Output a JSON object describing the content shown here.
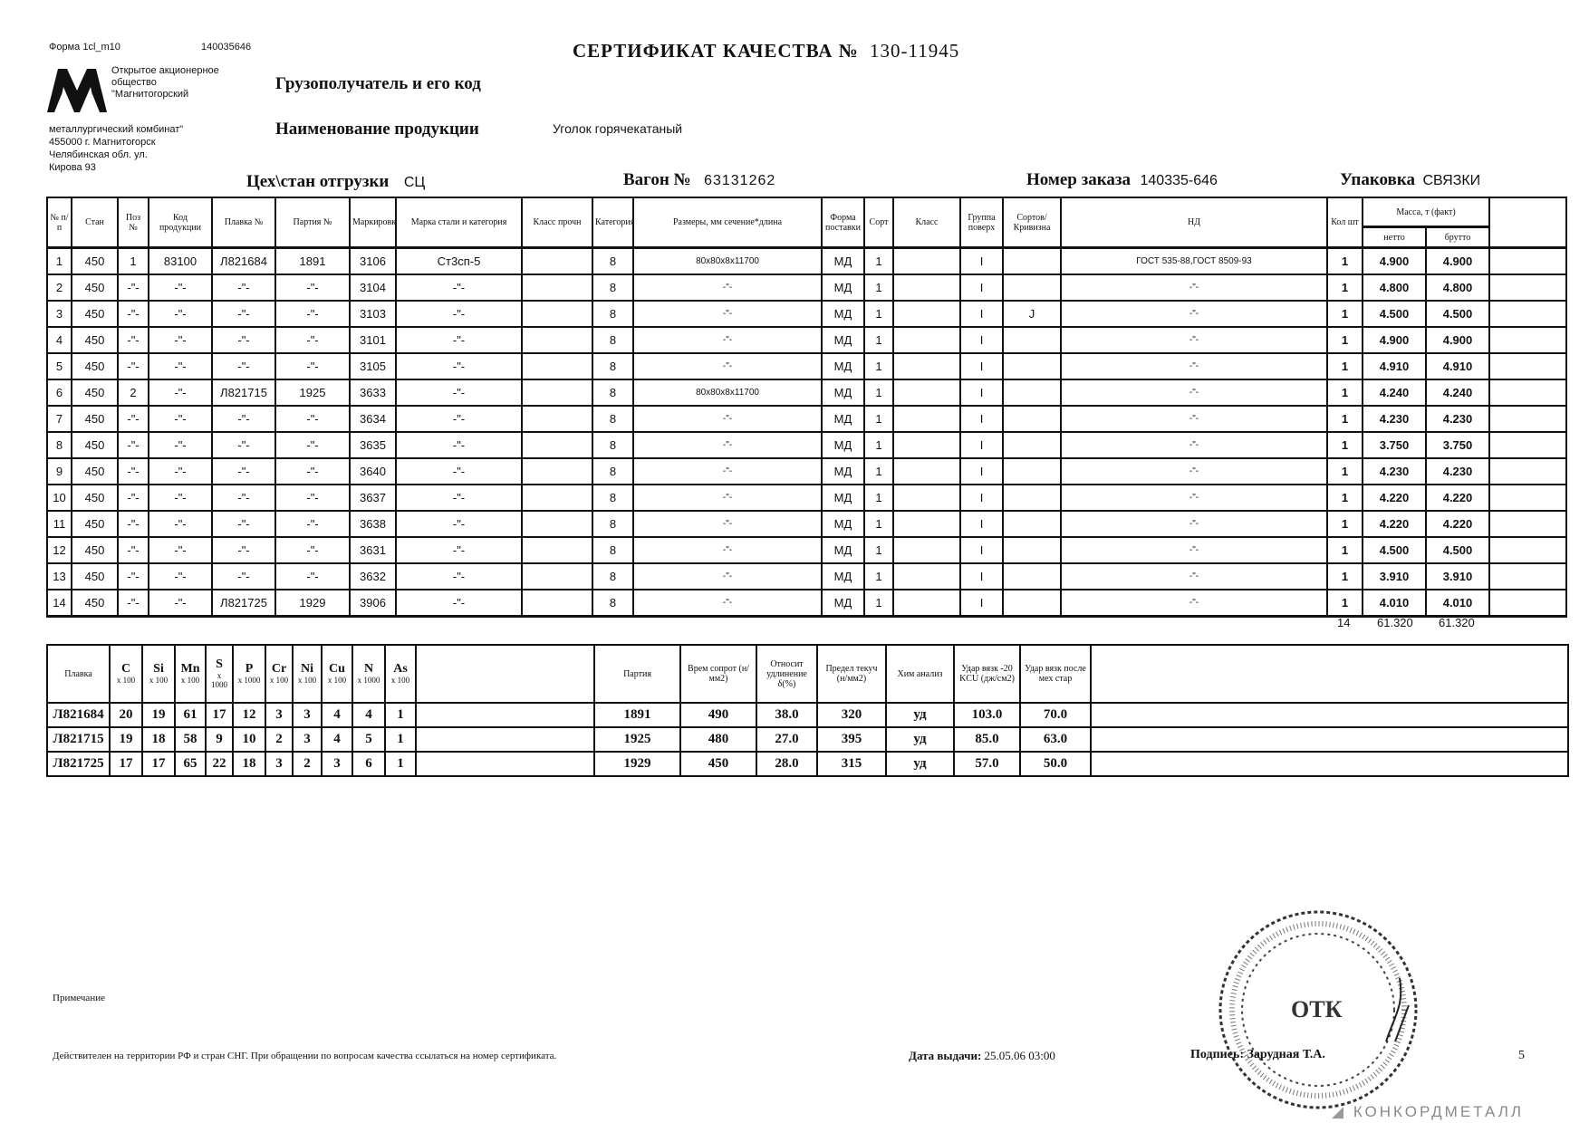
{
  "header": {
    "form_label": "Форма 1cl_m10",
    "form_code": "140035646",
    "title": "СЕРТИФИКАТ КАЧЕСТВА №",
    "certificate_number": "130-11945",
    "company": [
      "Открытое акционерное",
      "общество",
      "\"Магнитогорский",
      "металлургический комбинат\"",
      "455000 г. Магнитогорск",
      "Челябинская обл. ул.",
      "Кирова 93"
    ],
    "consignee_label": "Грузополучатель и его код",
    "product_label": "Наименование продукции",
    "product_value": "Уголок горячекатаный",
    "shop_label": "Цех\\стан отгрузки",
    "shop_value": "СЦ",
    "wagon_label": "Вагон №",
    "wagon_value": "63131262",
    "order_label": "Номер заказа",
    "order_value": "140335-646",
    "packing_label": "Упаковка",
    "packing_value": "СВЯЗКИ"
  },
  "main_table": {
    "headers": [
      "№ п/п",
      "Стан",
      "Поз №",
      "Код продукции",
      "Плавка №",
      "Партия №",
      "Маркировка",
      "Марка стали и категория",
      "Класс прочн",
      "Категория",
      "Размеры, мм сечение*длина",
      "Форма поставки",
      "Сорт",
      "Класс",
      "Группа поверх",
      "Сортов/ Кривизна",
      "НД",
      "Кол шт",
      "Масса, т (факт)",
      ""
    ],
    "mass_subheaders": [
      "нетто",
      "брутто"
    ],
    "rows": [
      [
        "1",
        "450",
        "1",
        "83100",
        "Л821684",
        "1891",
        "3106",
        "Ст3сп-5",
        "",
        "8",
        "80х80х8х11700",
        "МД",
        "1",
        "",
        "I",
        "",
        "ГОСТ 535-88,ГОСТ 8509-93",
        "1",
        "4.900",
        "4.900",
        ""
      ],
      [
        "2",
        "450",
        "-\"-",
        "-\"-",
        "-\"-",
        "-\"-",
        "3104",
        "-\"-",
        "",
        "8",
        "-\"-",
        "МД",
        "1",
        "",
        "I",
        "",
        "-\"-",
        "1",
        "4.800",
        "4.800",
        ""
      ],
      [
        "3",
        "450",
        "-\"-",
        "-\"-",
        "-\"-",
        "-\"-",
        "3103",
        "-\"-",
        "",
        "8",
        "-\"-",
        "МД",
        "1",
        "",
        "I",
        "J",
        "-\"-",
        "1",
        "4.500",
        "4.500",
        ""
      ],
      [
        "4",
        "450",
        "-\"-",
        "-\"-",
        "-\"-",
        "-\"-",
        "3101",
        "-\"-",
        "",
        "8",
        "-\"-",
        "МД",
        "1",
        "",
        "I",
        "",
        "-\"-",
        "1",
        "4.900",
        "4.900",
        ""
      ],
      [
        "5",
        "450",
        "-\"-",
        "-\"-",
        "-\"-",
        "-\"-",
        "3105",
        "-\"-",
        "",
        "8",
        "-\"-",
        "МД",
        "1",
        "",
        "I",
        "",
        "-\"-",
        "1",
        "4.910",
        "4.910",
        ""
      ],
      [
        "6",
        "450",
        "2",
        "-\"-",
        "Л821715",
        "1925",
        "3633",
        "-\"-",
        "",
        "8",
        "80х80х8х11700",
        "МД",
        "1",
        "",
        "I",
        "",
        "-\"-",
        "1",
        "4.240",
        "4.240",
        ""
      ],
      [
        "7",
        "450",
        "-\"-",
        "-\"-",
        "-\"-",
        "-\"-",
        "3634",
        "-\"-",
        "",
        "8",
        "-\"-",
        "МД",
        "1",
        "",
        "I",
        "",
        "-\"-",
        "1",
        "4.230",
        "4.230",
        ""
      ],
      [
        "8",
        "450",
        "-\"-",
        "-\"-",
        "-\"-",
        "-\"-",
        "3635",
        "-\"-",
        "",
        "8",
        "-\"-",
        "МД",
        "1",
        "",
        "I",
        "",
        "-\"-",
        "1",
        "3.750",
        "3.750",
        ""
      ],
      [
        "9",
        "450",
        "-\"-",
        "-\"-",
        "-\"-",
        "-\"-",
        "3640",
        "-\"-",
        "",
        "8",
        "-\"-",
        "МД",
        "1",
        "",
        "I",
        "",
        "-\"-",
        "1",
        "4.230",
        "4.230",
        ""
      ],
      [
        "10",
        "450",
        "-\"-",
        "-\"-",
        "-\"-",
        "-\"-",
        "3637",
        "-\"-",
        "",
        "8",
        "-\"-",
        "МД",
        "1",
        "",
        "I",
        "",
        "-\"-",
        "1",
        "4.220",
        "4.220",
        ""
      ],
      [
        "11",
        "450",
        "-\"-",
        "-\"-",
        "-\"-",
        "-\"-",
        "3638",
        "-\"-",
        "",
        "8",
        "-\"-",
        "МД",
        "1",
        "",
        "I",
        "",
        "-\"-",
        "1",
        "4.220",
        "4.220",
        ""
      ],
      [
        "12",
        "450",
        "-\"-",
        "-\"-",
        "-\"-",
        "-\"-",
        "3631",
        "-\"-",
        "",
        "8",
        "-\"-",
        "МД",
        "1",
        "",
        "I",
        "",
        "-\"-",
        "1",
        "4.500",
        "4.500",
        ""
      ],
      [
        "13",
        "450",
        "-\"-",
        "-\"-",
        "-\"-",
        "-\"-",
        "3632",
        "-\"-",
        "",
        "8",
        "-\"-",
        "МД",
        "1",
        "",
        "I",
        "",
        "-\"-",
        "1",
        "3.910",
        "3.910",
        ""
      ],
      [
        "14",
        "450",
        "-\"-",
        "-\"-",
        "Л821725",
        "1929",
        "3906",
        "-\"-",
        "",
        "8",
        "-\"-",
        "МД",
        "1",
        "",
        "I",
        "",
        "-\"-",
        "1",
        "4.010",
        "4.010",
        ""
      ]
    ],
    "totals": {
      "count": "14",
      "mass_net": "61.320",
      "mass_gross": "61.320"
    }
  },
  "chem_table": {
    "heat_header": "Плавка",
    "elements": [
      {
        "symbol": "C",
        "mult": "x 100"
      },
      {
        "symbol": "Si",
        "mult": "x 100"
      },
      {
        "symbol": "Mn",
        "mult": "x 100"
      },
      {
        "symbol": "S",
        "mult": "x 1000"
      },
      {
        "symbol": "P",
        "mult": "x 1000"
      },
      {
        "symbol": "Cr",
        "mult": "x 100"
      },
      {
        "symbol": "Ni",
        "mult": "x 100"
      },
      {
        "symbol": "Cu",
        "mult": "x 100"
      },
      {
        "symbol": "N",
        "mult": "x 1000"
      },
      {
        "symbol": "As",
        "mult": "x 100"
      }
    ],
    "mech_headers": [
      "Партия",
      "Врем сопрот (н/мм2)",
      "Относит удлинение δ(%)",
      "Предел текуч (н/мм2)",
      "Хим анализ",
      "Удар вязк -20 KCU (дж/см2)",
      "Удар вязк после мех стар"
    ],
    "rows": [
      {
        "heat": "Л821684",
        "chem": [
          "20",
          "19",
          "61",
          "17",
          "12",
          "3",
          "3",
          "4",
          "4",
          "1"
        ],
        "mech": [
          "1891",
          "490",
          "38.0",
          "320",
          "уд",
          "103.0",
          "70.0"
        ]
      },
      {
        "heat": "Л821715",
        "chem": [
          "19",
          "18",
          "58",
          "9",
          "10",
          "2",
          "3",
          "4",
          "5",
          "1"
        ],
        "mech": [
          "1925",
          "480",
          "27.0",
          "395",
          "уд",
          "85.0",
          "63.0"
        ]
      },
      {
        "heat": "Л821725",
        "chem": [
          "17",
          "17",
          "65",
          "22",
          "18",
          "3",
          "2",
          "3",
          "6",
          "1"
        ],
        "mech": [
          "1929",
          "450",
          "28.0",
          "315",
          "уд",
          "57.0",
          "50.0"
        ]
      }
    ]
  },
  "footer": {
    "note_label": "Примечание",
    "validity": "Действителен на территории РФ и стран СНГ. При обращении по вопросам качества ссылаться на номер сертификата.",
    "issue_date_label": "Дата выдачи:",
    "issue_date": "25.05.06 03:00",
    "signature_label": "Подпись:",
    "signature_name": "Зарудная Т.А.",
    "page_number": "5",
    "stamp_text": "ОТК",
    "watermark": "КОНКОРДМЕТАЛЛ"
  },
  "colors": {
    "ink": "#111111",
    "paper": "#ffffff",
    "watermark": "#8a8a8a"
  }
}
